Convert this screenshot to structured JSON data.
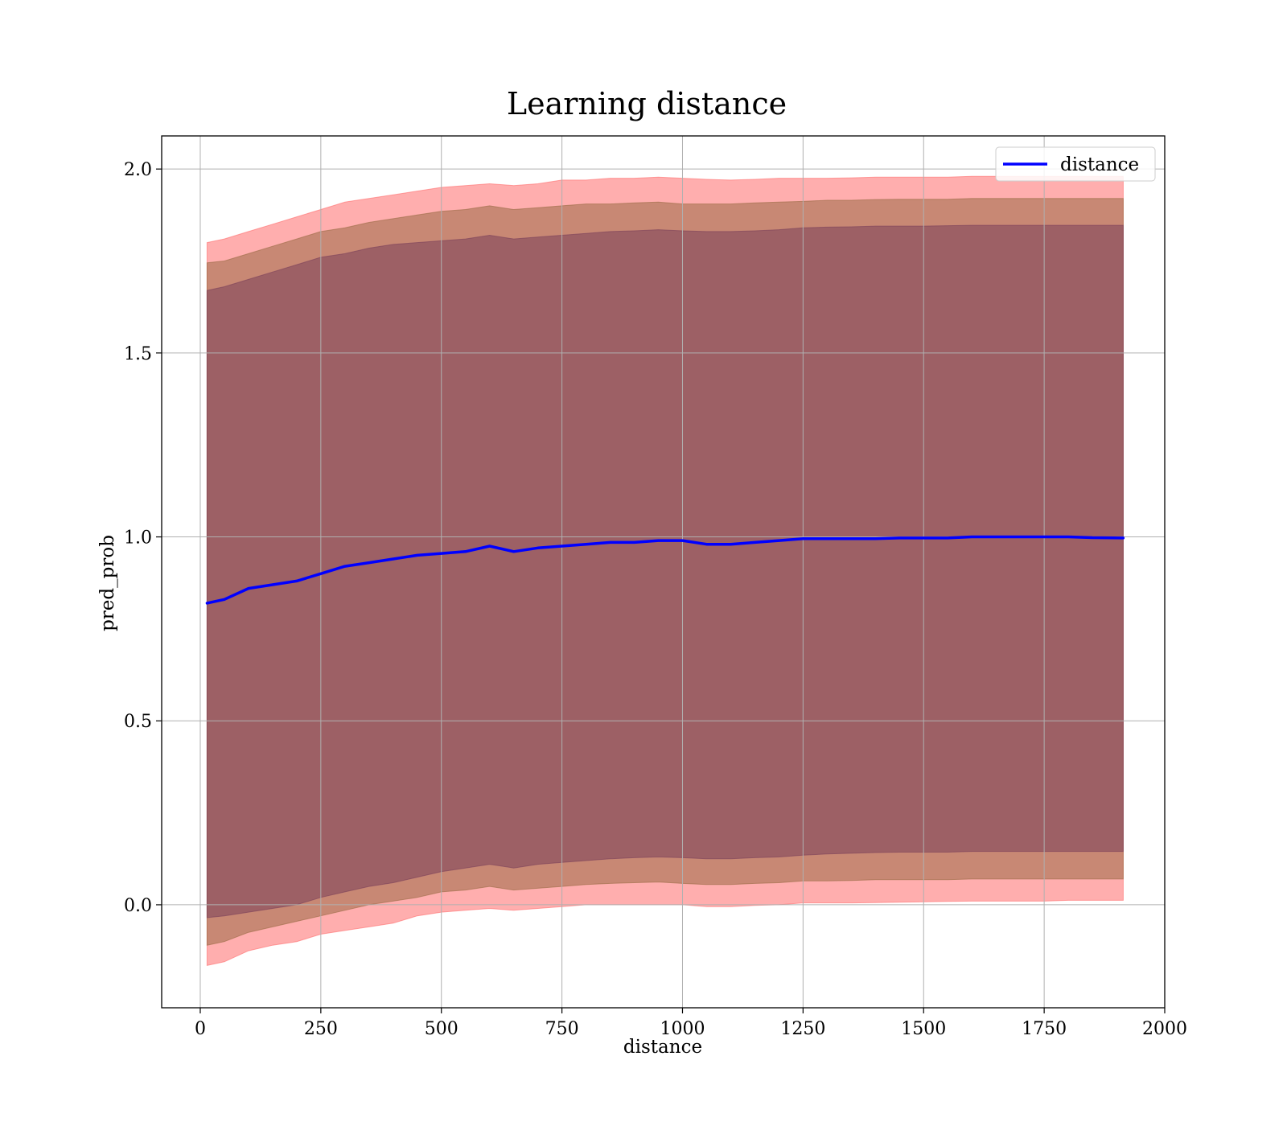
{
  "chart_data": {
    "type": "line",
    "title": "Learning distance",
    "xlabel": "distance",
    "ylabel": "pred_prob",
    "xlim": [
      -80,
      2000
    ],
    "ylim": [
      -0.28,
      2.09
    ],
    "x_ticks": [
      0,
      250,
      500,
      750,
      1000,
      1250,
      1500,
      1750,
      2000
    ],
    "y_ticks": [
      0.0,
      0.5,
      1.0,
      1.5,
      2.0
    ],
    "x_tick_labels": [
      "0",
      "250",
      "500",
      "750",
      "1000",
      "1250",
      "1500",
      "1750",
      "2000"
    ],
    "y_tick_labels": [
      "0.0",
      "0.5",
      "1.0",
      "1.5",
      "2.0"
    ],
    "grid": true,
    "legend": {
      "position": "top-right",
      "entries": [
        "distance"
      ]
    },
    "colors": {
      "line": "#0000ff",
      "band_outer": "#ff6b6b",
      "band_middle": "#9a6a45",
      "band_inner": "#7a3f5a"
    },
    "series": [
      {
        "name": "distance",
        "x": [
          14,
          50,
          100,
          150,
          200,
          250,
          300,
          350,
          400,
          450,
          500,
          550,
          600,
          650,
          700,
          750,
          800,
          850,
          900,
          950,
          1000,
          1050,
          1100,
          1150,
          1200,
          1250,
          1300,
          1350,
          1400,
          1450,
          1500,
          1550,
          1600,
          1650,
          1700,
          1750,
          1800,
          1850,
          1914
        ],
        "y": [
          0.82,
          0.83,
          0.86,
          0.87,
          0.88,
          0.9,
          0.92,
          0.93,
          0.94,
          0.95,
          0.955,
          0.96,
          0.975,
          0.96,
          0.97,
          0.975,
          0.98,
          0.985,
          0.985,
          0.99,
          0.99,
          0.98,
          0.98,
          0.985,
          0.99,
          0.995,
          0.995,
          0.995,
          0.995,
          0.997,
          0.997,
          0.997,
          1.0,
          1.0,
          1.0,
          1.0,
          1.0,
          0.998,
          0.997
        ]
      }
    ],
    "bands": [
      {
        "level": "outer",
        "x": [
          14,
          50,
          100,
          150,
          200,
          250,
          300,
          350,
          400,
          450,
          500,
          550,
          600,
          650,
          700,
          750,
          800,
          850,
          900,
          950,
          1000,
          1050,
          1100,
          1150,
          1200,
          1250,
          1300,
          1350,
          1400,
          1450,
          1500,
          1550,
          1600,
          1650,
          1700,
          1750,
          1800,
          1850,
          1914
        ],
        "upper": [
          1.8,
          1.81,
          1.83,
          1.85,
          1.87,
          1.89,
          1.91,
          1.92,
          1.93,
          1.94,
          1.95,
          1.955,
          1.96,
          1.955,
          1.96,
          1.97,
          1.97,
          1.975,
          1.975,
          1.978,
          1.975,
          1.972,
          1.97,
          1.972,
          1.975,
          1.975,
          1.975,
          1.976,
          1.978,
          1.978,
          1.978,
          1.978,
          1.98,
          1.98,
          1.98,
          1.98,
          1.98,
          1.98,
          1.98
        ],
        "lower": [
          -0.165,
          -0.155,
          -0.125,
          -0.11,
          -0.1,
          -0.08,
          -0.07,
          -0.06,
          -0.05,
          -0.03,
          -0.02,
          -0.015,
          -0.01,
          -0.015,
          -0.01,
          -0.005,
          0.0,
          0.0,
          0.0,
          0.0,
          0.0,
          -0.005,
          -0.005,
          -0.002,
          0.0,
          0.005,
          0.005,
          0.005,
          0.006,
          0.007,
          0.008,
          0.009,
          0.01,
          0.01,
          0.01,
          0.01,
          0.012,
          0.012,
          0.012
        ]
      },
      {
        "level": "middle",
        "x": [
          14,
          50,
          100,
          150,
          200,
          250,
          300,
          350,
          400,
          450,
          500,
          550,
          600,
          650,
          700,
          750,
          800,
          850,
          900,
          950,
          1000,
          1050,
          1100,
          1150,
          1200,
          1250,
          1300,
          1350,
          1400,
          1450,
          1500,
          1550,
          1600,
          1650,
          1700,
          1750,
          1800,
          1850,
          1914
        ],
        "upper": [
          1.745,
          1.75,
          1.77,
          1.79,
          1.81,
          1.83,
          1.84,
          1.855,
          1.865,
          1.875,
          1.885,
          1.89,
          1.9,
          1.89,
          1.895,
          1.9,
          1.905,
          1.905,
          1.908,
          1.91,
          1.905,
          1.905,
          1.905,
          1.908,
          1.91,
          1.912,
          1.915,
          1.915,
          1.917,
          1.918,
          1.918,
          1.918,
          1.92,
          1.92,
          1.92,
          1.92,
          1.92,
          1.92,
          1.92
        ],
        "lower": [
          -0.11,
          -0.1,
          -0.075,
          -0.06,
          -0.045,
          -0.03,
          -0.015,
          0.0,
          0.01,
          0.02,
          0.035,
          0.04,
          0.05,
          0.04,
          0.045,
          0.05,
          0.055,
          0.058,
          0.06,
          0.062,
          0.058,
          0.055,
          0.055,
          0.058,
          0.06,
          0.065,
          0.065,
          0.066,
          0.068,
          0.068,
          0.068,
          0.068,
          0.07,
          0.07,
          0.07,
          0.07,
          0.07,
          0.07,
          0.07
        ]
      },
      {
        "level": "inner",
        "x": [
          14,
          50,
          100,
          150,
          200,
          250,
          300,
          350,
          400,
          450,
          500,
          550,
          600,
          650,
          700,
          750,
          800,
          850,
          900,
          950,
          1000,
          1050,
          1100,
          1150,
          1200,
          1250,
          1300,
          1350,
          1400,
          1450,
          1500,
          1550,
          1600,
          1650,
          1700,
          1750,
          1800,
          1850,
          1914
        ],
        "upper": [
          1.67,
          1.68,
          1.7,
          1.72,
          1.74,
          1.76,
          1.77,
          1.785,
          1.795,
          1.8,
          1.805,
          1.81,
          1.82,
          1.81,
          1.815,
          1.82,
          1.825,
          1.83,
          1.832,
          1.835,
          1.832,
          1.83,
          1.83,
          1.832,
          1.835,
          1.84,
          1.842,
          1.843,
          1.845,
          1.845,
          1.845,
          1.846,
          1.847,
          1.847,
          1.847,
          1.847,
          1.847,
          1.847,
          1.847
        ],
        "lower": [
          -0.035,
          -0.03,
          -0.02,
          -0.01,
          0.0,
          0.02,
          0.035,
          0.05,
          0.06,
          0.075,
          0.09,
          0.1,
          0.11,
          0.1,
          0.11,
          0.115,
          0.12,
          0.125,
          0.128,
          0.13,
          0.128,
          0.125,
          0.125,
          0.128,
          0.13,
          0.135,
          0.138,
          0.14,
          0.142,
          0.143,
          0.143,
          0.143,
          0.145,
          0.145,
          0.145,
          0.145,
          0.145,
          0.145,
          0.145
        ]
      }
    ]
  }
}
